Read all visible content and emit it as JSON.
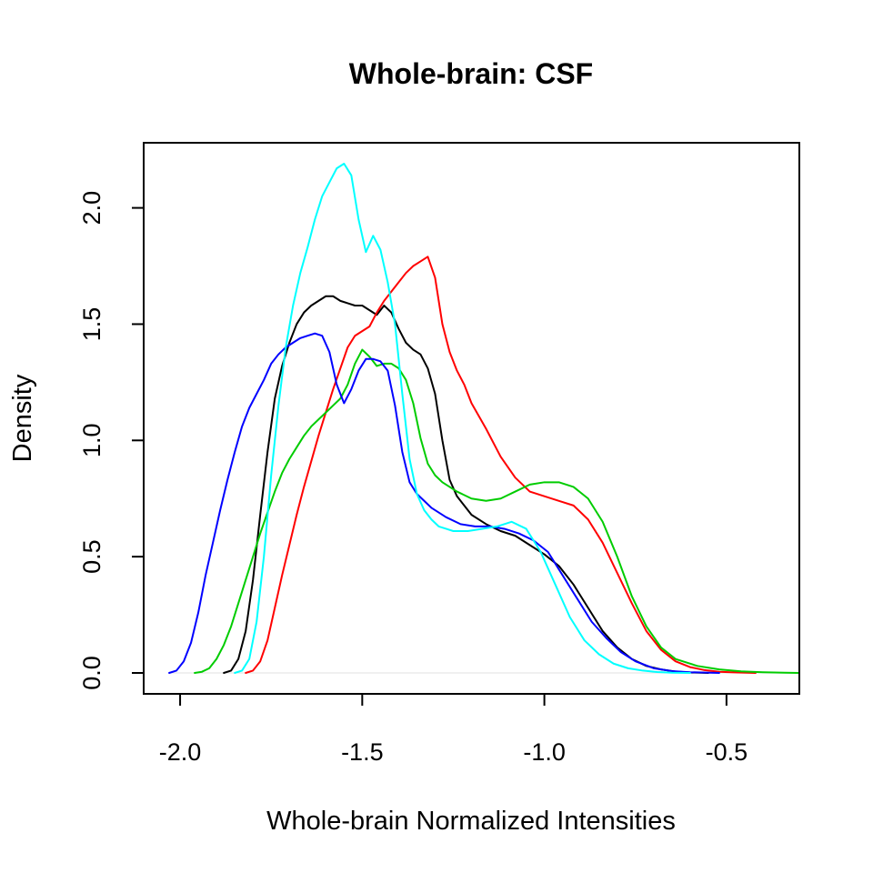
{
  "chart_data": {
    "type": "line",
    "title": "Whole-brain: CSF",
    "xlabel": "Whole-brain Normalized Intensities",
    "ylabel": "Density",
    "xlim": [
      -2.1,
      -0.3
    ],
    "ylim": [
      -0.09,
      2.28
    ],
    "x_ticks": [
      -2.0,
      -1.5,
      -1.0,
      -0.5
    ],
    "x_tick_labels": [
      "-2.0",
      "-1.5",
      "-1.0",
      "-0.5"
    ],
    "y_ticks": [
      0.0,
      0.5,
      1.0,
      1.5,
      2.0
    ],
    "y_tick_labels": [
      "0.0",
      "0.5",
      "1.0",
      "1.5",
      "2.0"
    ],
    "grid": false,
    "series": [
      {
        "color": "#000000",
        "x": [
          -1.88,
          -1.86,
          -1.84,
          -1.82,
          -1.8,
          -1.78,
          -1.76,
          -1.74,
          -1.72,
          -1.7,
          -1.68,
          -1.66,
          -1.64,
          -1.62,
          -1.6,
          -1.58,
          -1.56,
          -1.54,
          -1.52,
          -1.5,
          -1.48,
          -1.46,
          -1.44,
          -1.42,
          -1.4,
          -1.38,
          -1.36,
          -1.34,
          -1.32,
          -1.3,
          -1.28,
          -1.26,
          -1.24,
          -1.22,
          -1.2,
          -1.16,
          -1.12,
          -1.08,
          -1.04,
          -1.0,
          -0.96,
          -0.92,
          -0.88,
          -0.84,
          -0.8,
          -0.76,
          -0.72,
          -0.68,
          -0.64,
          -0.6,
          -0.55
        ],
        "y": [
          0.0,
          0.01,
          0.06,
          0.18,
          0.4,
          0.68,
          0.95,
          1.18,
          1.32,
          1.42,
          1.5,
          1.55,
          1.58,
          1.6,
          1.62,
          1.62,
          1.6,
          1.59,
          1.58,
          1.58,
          1.56,
          1.54,
          1.58,
          1.55,
          1.48,
          1.42,
          1.39,
          1.37,
          1.31,
          1.2,
          1.0,
          0.83,
          0.76,
          0.72,
          0.68,
          0.64,
          0.61,
          0.59,
          0.55,
          0.51,
          0.46,
          0.38,
          0.28,
          0.18,
          0.11,
          0.06,
          0.03,
          0.015,
          0.006,
          0.002,
          0.0
        ]
      },
      {
        "color": "#ff0000",
        "x": [
          -1.82,
          -1.8,
          -1.78,
          -1.76,
          -1.74,
          -1.72,
          -1.7,
          -1.68,
          -1.66,
          -1.64,
          -1.62,
          -1.6,
          -1.58,
          -1.56,
          -1.54,
          -1.52,
          -1.5,
          -1.48,
          -1.46,
          -1.44,
          -1.42,
          -1.4,
          -1.38,
          -1.36,
          -1.34,
          -1.32,
          -1.3,
          -1.28,
          -1.26,
          -1.24,
          -1.22,
          -1.2,
          -1.16,
          -1.12,
          -1.08,
          -1.04,
          -1.0,
          -0.96,
          -0.92,
          -0.88,
          -0.84,
          -0.8,
          -0.76,
          -0.72,
          -0.68,
          -0.64,
          -0.6,
          -0.56,
          -0.52,
          -0.47,
          -0.42
        ],
        "y": [
          0.0,
          0.01,
          0.05,
          0.14,
          0.28,
          0.42,
          0.55,
          0.68,
          0.8,
          0.91,
          1.02,
          1.12,
          1.22,
          1.31,
          1.4,
          1.45,
          1.47,
          1.49,
          1.55,
          1.6,
          1.64,
          1.68,
          1.72,
          1.75,
          1.77,
          1.79,
          1.7,
          1.5,
          1.38,
          1.3,
          1.24,
          1.16,
          1.05,
          0.93,
          0.84,
          0.78,
          0.76,
          0.74,
          0.72,
          0.66,
          0.56,
          0.43,
          0.3,
          0.18,
          0.1,
          0.05,
          0.025,
          0.012,
          0.005,
          0.002,
          0.0
        ]
      },
      {
        "color": "#00cc00",
        "x": [
          -1.96,
          -1.94,
          -1.92,
          -1.9,
          -1.88,
          -1.86,
          -1.84,
          -1.82,
          -1.8,
          -1.78,
          -1.76,
          -1.74,
          -1.72,
          -1.7,
          -1.68,
          -1.66,
          -1.64,
          -1.62,
          -1.6,
          -1.58,
          -1.56,
          -1.54,
          -1.52,
          -1.5,
          -1.48,
          -1.46,
          -1.44,
          -1.42,
          -1.4,
          -1.38,
          -1.36,
          -1.34,
          -1.32,
          -1.3,
          -1.28,
          -1.24,
          -1.2,
          -1.16,
          -1.12,
          -1.08,
          -1.04,
          -1.0,
          -0.96,
          -0.92,
          -0.88,
          -0.84,
          -0.8,
          -0.76,
          -0.72,
          -0.68,
          -0.64,
          -0.58,
          -0.52,
          -0.46,
          -0.4,
          -0.34,
          -0.3
        ],
        "y": [
          0.0,
          0.005,
          0.02,
          0.06,
          0.12,
          0.2,
          0.3,
          0.4,
          0.5,
          0.6,
          0.69,
          0.78,
          0.86,
          0.92,
          0.97,
          1.02,
          1.06,
          1.09,
          1.12,
          1.15,
          1.18,
          1.24,
          1.33,
          1.39,
          1.36,
          1.32,
          1.33,
          1.33,
          1.31,
          1.26,
          1.16,
          1.01,
          0.9,
          0.85,
          0.82,
          0.78,
          0.75,
          0.74,
          0.75,
          0.78,
          0.81,
          0.82,
          0.82,
          0.8,
          0.75,
          0.65,
          0.5,
          0.33,
          0.2,
          0.11,
          0.06,
          0.03,
          0.015,
          0.007,
          0.003,
          0.001,
          0.0
        ]
      },
      {
        "color": "#0000ff",
        "x": [
          -2.03,
          -2.01,
          -1.99,
          -1.97,
          -1.95,
          -1.93,
          -1.91,
          -1.89,
          -1.87,
          -1.85,
          -1.83,
          -1.81,
          -1.79,
          -1.77,
          -1.75,
          -1.73,
          -1.71,
          -1.69,
          -1.67,
          -1.65,
          -1.63,
          -1.61,
          -1.59,
          -1.57,
          -1.55,
          -1.53,
          -1.51,
          -1.49,
          -1.47,
          -1.45,
          -1.43,
          -1.41,
          -1.39,
          -1.37,
          -1.35,
          -1.33,
          -1.31,
          -1.27,
          -1.23,
          -1.19,
          -1.15,
          -1.11,
          -1.07,
          -1.03,
          -0.99,
          -0.95,
          -0.91,
          -0.87,
          -0.83,
          -0.79,
          -0.75,
          -0.7,
          -0.65,
          -0.6,
          -0.52
        ],
        "y": [
          0.0,
          0.01,
          0.05,
          0.13,
          0.26,
          0.42,
          0.56,
          0.7,
          0.83,
          0.95,
          1.06,
          1.14,
          1.2,
          1.26,
          1.33,
          1.37,
          1.4,
          1.42,
          1.44,
          1.45,
          1.46,
          1.45,
          1.38,
          1.24,
          1.16,
          1.22,
          1.3,
          1.35,
          1.35,
          1.34,
          1.3,
          1.15,
          0.95,
          0.82,
          0.77,
          0.74,
          0.71,
          0.67,
          0.64,
          0.63,
          0.63,
          0.62,
          0.6,
          0.57,
          0.52,
          0.42,
          0.32,
          0.22,
          0.15,
          0.09,
          0.05,
          0.02,
          0.008,
          0.003,
          0.0
        ]
      },
      {
        "color": "#00ffff",
        "x": [
          -1.85,
          -1.83,
          -1.81,
          -1.79,
          -1.77,
          -1.75,
          -1.73,
          -1.71,
          -1.69,
          -1.67,
          -1.65,
          -1.63,
          -1.61,
          -1.59,
          -1.57,
          -1.55,
          -1.53,
          -1.51,
          -1.49,
          -1.47,
          -1.45,
          -1.43,
          -1.41,
          -1.39,
          -1.37,
          -1.35,
          -1.33,
          -1.31,
          -1.29,
          -1.27,
          -1.25,
          -1.21,
          -1.17,
          -1.13,
          -1.09,
          -1.05,
          -1.01,
          -0.97,
          -0.93,
          -0.89,
          -0.85,
          -0.81,
          -0.77,
          -0.73,
          -0.69,
          -0.65,
          -0.6
        ],
        "y": [
          0.0,
          0.01,
          0.06,
          0.22,
          0.5,
          0.85,
          1.15,
          1.4,
          1.58,
          1.72,
          1.83,
          1.95,
          2.05,
          2.11,
          2.17,
          2.19,
          2.14,
          1.95,
          1.81,
          1.88,
          1.82,
          1.68,
          1.5,
          1.2,
          0.92,
          0.77,
          0.7,
          0.66,
          0.63,
          0.62,
          0.61,
          0.61,
          0.62,
          0.63,
          0.65,
          0.62,
          0.52,
          0.38,
          0.24,
          0.14,
          0.08,
          0.04,
          0.02,
          0.01,
          0.004,
          0.001,
          0.0
        ]
      }
    ]
  }
}
